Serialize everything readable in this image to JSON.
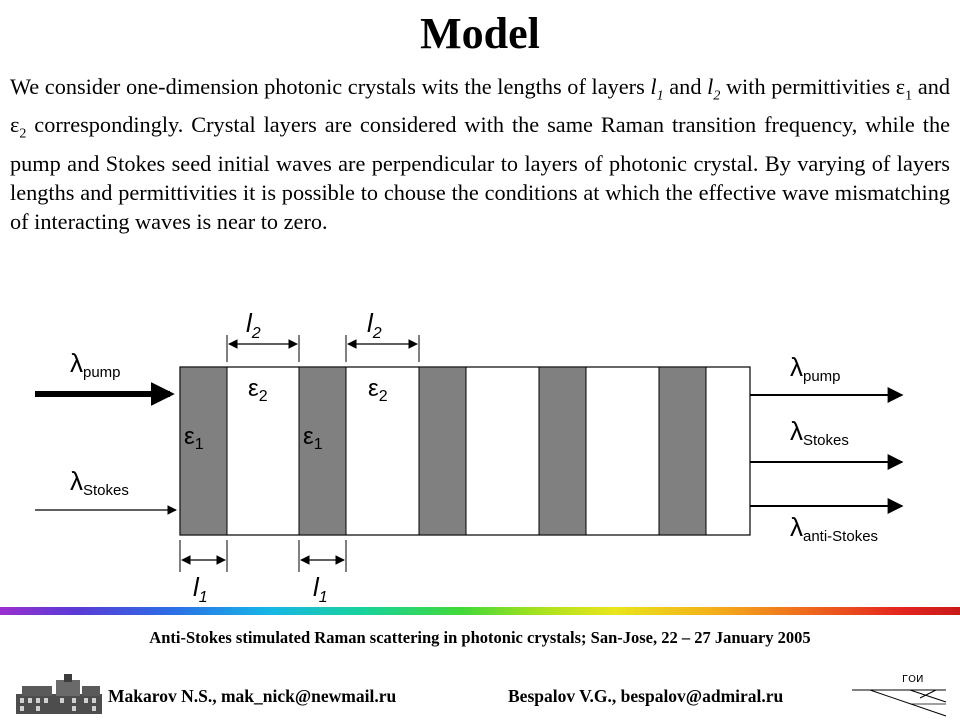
{
  "title": "Model",
  "paragraph": {
    "t1": "We consider one-dimension photonic crystals wits the lengths of layers ",
    "l_sym": "l",
    "l1_sub": "1",
    "t2": " and ",
    "l2_sub": "2",
    "t3": " with permittivities ",
    "eps_sym": "ε",
    "eps1_sub": "1",
    "t4": " and ",
    "eps2_sub": "2",
    "t5": " correspondingly. Crystal layers are considered with the same Raman transition frequency, while the pump and Stokes seed initial waves are perpendicular to layers of photonic crystal. By varying of layers lengths and permittivities it is possible to chouse the conditions at which the effective wave mismatching of interacting waves is near to zero."
  },
  "diagram": {
    "lambda": "λ",
    "input_pump": "pump",
    "input_stokes": "Stokes",
    "output_pump": "pump",
    "output_stokes": "Stokes",
    "output_anti_stokes": "anti-Stokes",
    "eps_symbol": "ε",
    "eps1_sub": "1",
    "eps2_sub": "2",
    "length_symbol": "l",
    "l1_sub": "1",
    "l2_sub": "2",
    "colors": {
      "dark_layer": "#808080",
      "light_layer": "#ffffff",
      "stroke": "#000000"
    }
  },
  "footer": {
    "conference": "Anti-Stokes stimulated Raman scattering in photonic crystals; San-Jose, 22 – 27 January  2005",
    "author1": "Makarov N.S., mak_nick@newmail.ru",
    "author2": "Bespalov V.G., bespalov@admiral.ru",
    "logo_text": "ГОИ"
  }
}
